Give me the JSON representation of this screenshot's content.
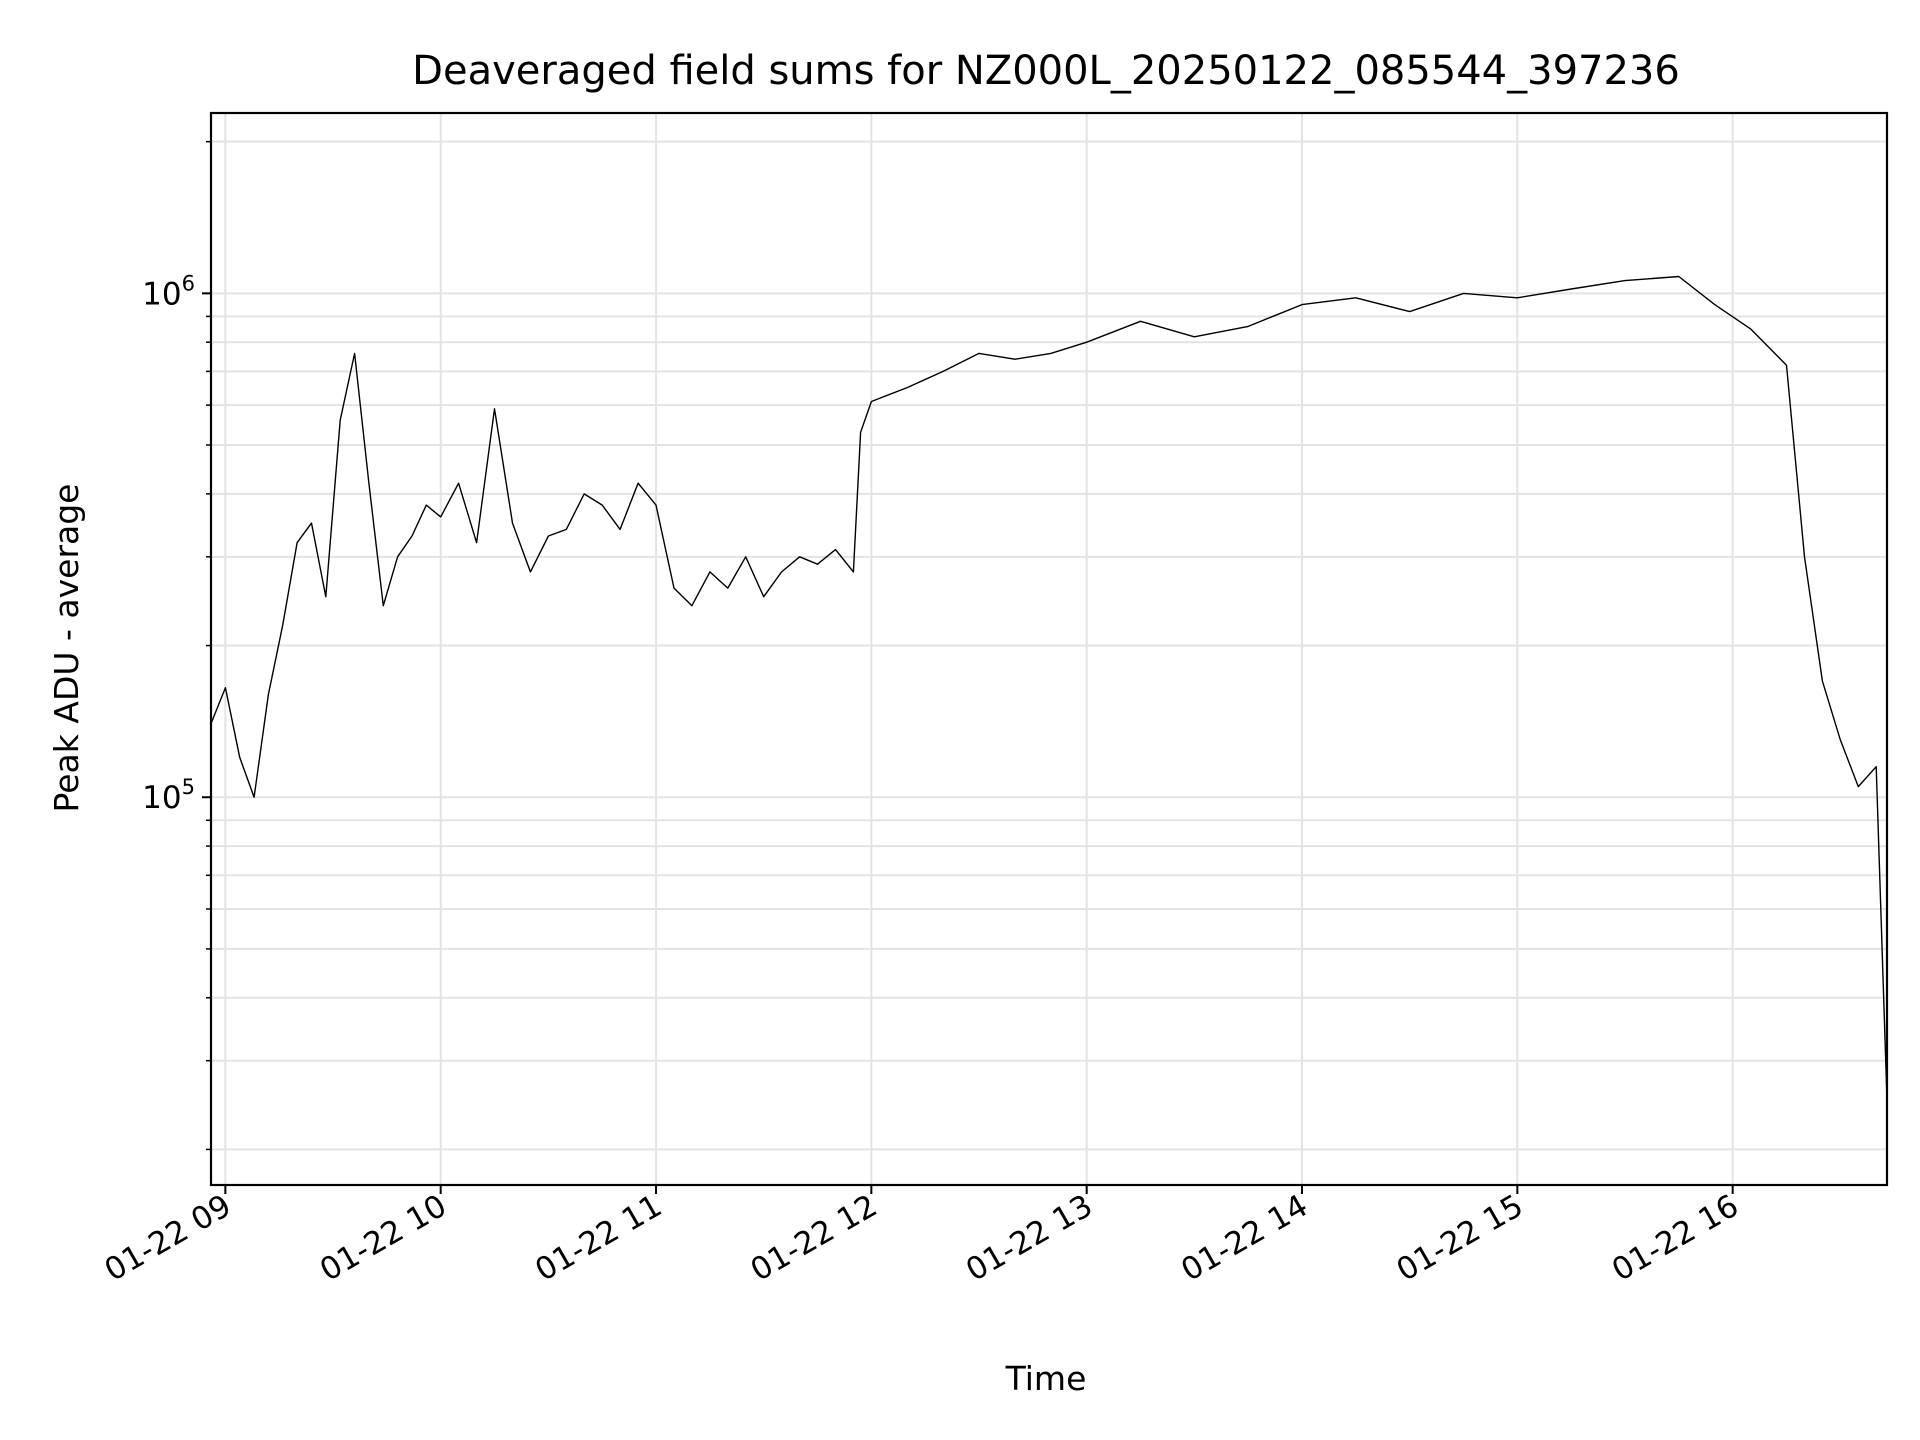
{
  "chart_data": {
    "type": "line",
    "title": "Deaveraged field sums for NZ000L_20250122_085544_397236",
    "xlabel": "Time",
    "ylabel": "Peak ADU - average",
    "yscale": "log",
    "xlim": [
      "2025-01-22T08:56",
      "2025-01-22T16:43"
    ],
    "ylim": [
      17000,
      2280000
    ],
    "x_tick_labels": [
      "01-22 09",
      "01-22 10",
      "01-22 11",
      "01-22 12",
      "01-22 13",
      "01-22 14",
      "01-22 15",
      "01-22 16"
    ],
    "x_ticks": [
      "2025-01-22T09:00",
      "2025-01-22T10:00",
      "2025-01-22T11:00",
      "2025-01-22T12:00",
      "2025-01-22T13:00",
      "2025-01-22T14:00",
      "2025-01-22T15:00",
      "2025-01-22T16:00"
    ],
    "y_ticks": [
      {
        "base": "10",
        "exp": "5",
        "value": 100000
      },
      {
        "base": "10",
        "exp": "6",
        "value": 1000000
      }
    ],
    "grid": true,
    "series_color": "#000000",
    "series": [
      {
        "x": [
          "2025-01-22T08:56",
          "2025-01-22T09:00",
          "2025-01-22T09:04",
          "2025-01-22T09:08",
          "2025-01-22T09:12",
          "2025-01-22T09:16",
          "2025-01-22T09:20",
          "2025-01-22T09:24",
          "2025-01-22T09:28",
          "2025-01-22T09:32",
          "2025-01-22T09:36",
          "2025-01-22T09:40",
          "2025-01-22T09:44",
          "2025-01-22T09:48",
          "2025-01-22T09:52",
          "2025-01-22T09:56",
          "2025-01-22T10:00",
          "2025-01-22T10:05",
          "2025-01-22T10:10",
          "2025-01-22T10:15",
          "2025-01-22T10:20",
          "2025-01-22T10:25",
          "2025-01-22T10:30",
          "2025-01-22T10:35",
          "2025-01-22T10:40",
          "2025-01-22T10:45",
          "2025-01-22T10:50",
          "2025-01-22T10:55",
          "2025-01-22T11:00",
          "2025-01-22T11:05",
          "2025-01-22T11:10",
          "2025-01-22T11:15",
          "2025-01-22T11:20",
          "2025-01-22T11:25",
          "2025-01-22T11:30",
          "2025-01-22T11:35",
          "2025-01-22T11:40",
          "2025-01-22T11:45",
          "2025-01-22T11:50",
          "2025-01-22T11:55",
          "2025-01-22T11:57",
          "2025-01-22T12:00",
          "2025-01-22T12:10",
          "2025-01-22T12:20",
          "2025-01-22T12:30",
          "2025-01-22T12:40",
          "2025-01-22T12:50",
          "2025-01-22T13:00",
          "2025-01-22T13:15",
          "2025-01-22T13:30",
          "2025-01-22T13:45",
          "2025-01-22T14:00",
          "2025-01-22T14:15",
          "2025-01-22T14:30",
          "2025-01-22T14:45",
          "2025-01-22T15:00",
          "2025-01-22T15:15",
          "2025-01-22T15:30",
          "2025-01-22T15:45",
          "2025-01-22T15:55",
          "2025-01-22T16:05",
          "2025-01-22T16:15",
          "2025-01-22T16:20",
          "2025-01-22T16:25",
          "2025-01-22T16:30",
          "2025-01-22T16:35",
          "2025-01-22T16:40",
          "2025-01-22T16:43"
        ],
        "y": [
          140000,
          165000,
          120000,
          100000,
          160000,
          220000,
          320000,
          350000,
          250000,
          560000,
          760000,
          420000,
          240000,
          300000,
          330000,
          380000,
          360000,
          420000,
          320000,
          590000,
          350000,
          280000,
          330000,
          340000,
          400000,
          380000,
          340000,
          420000,
          380000,
          260000,
          240000,
          280000,
          260000,
          300000,
          250000,
          280000,
          300000,
          290000,
          310000,
          280000,
          530000,
          610000,
          650000,
          700000,
          760000,
          740000,
          760000,
          800000,
          880000,
          820000,
          860000,
          950000,
          980000,
          920000,
          1000000,
          980000,
          1020000,
          1060000,
          1080000,
          950000,
          850000,
          720000,
          300000,
          170000,
          130000,
          105000,
          115000,
          25000
        ]
      }
    ]
  }
}
